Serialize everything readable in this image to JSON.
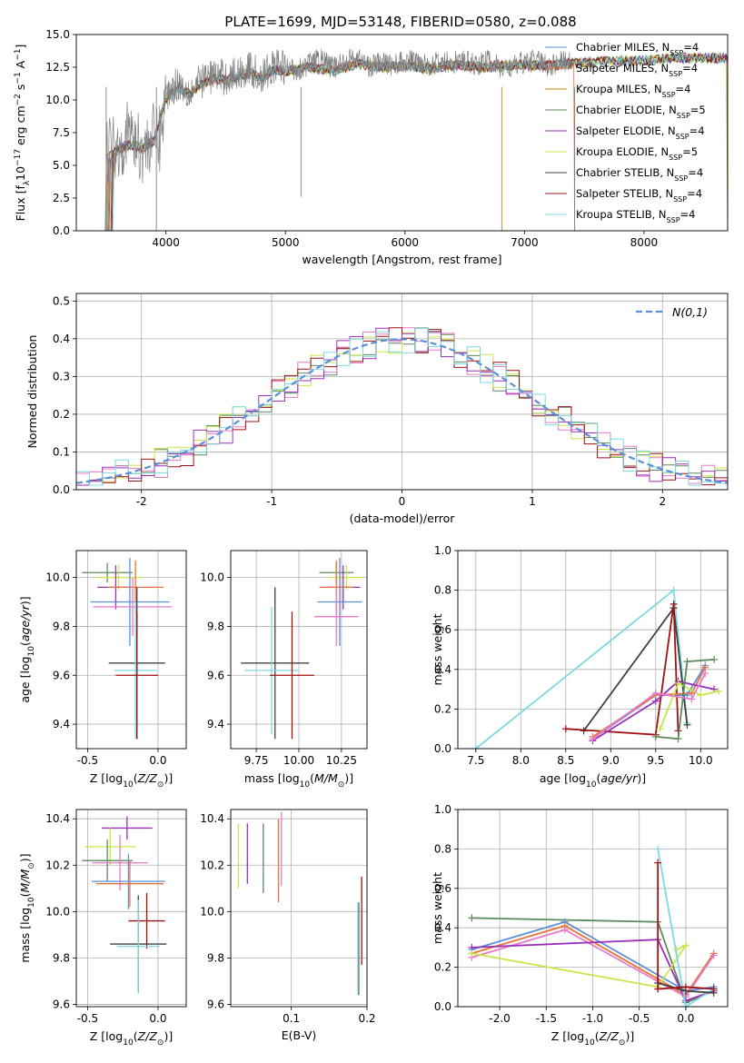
{
  "figure": {
    "title": "PLATE=1699, MJD=53148, FIBERID=0580, z=0.088"
  },
  "chart_data": [
    {
      "id": "spectrum",
      "type": "line",
      "xlabel": "wavelength [Angstrom, rest frame]",
      "ylabel": "Flux [f_λ 10^{-17} erg cm^{-2} s^{-1} Å^{-1}]",
      "xlim": [
        3250,
        8700
      ],
      "ylim": [
        0,
        15
      ],
      "xticks": [
        4000,
        5000,
        6000,
        7000,
        8000
      ],
      "yticks": [
        0.0,
        2.5,
        5.0,
        7.5,
        10.0,
        12.5,
        15.0
      ],
      "grid": false,
      "legend_position": "right",
      "data_color": "#808080",
      "data_x": [
        3500,
        3550,
        3600,
        3650,
        3700,
        3750,
        3800,
        3850,
        3900,
        3950,
        4000,
        4100,
        4200,
        4300,
        4400,
        4500,
        4600,
        4700,
        4800,
        4900,
        5000,
        5100,
        5200,
        5300,
        5400,
        5500,
        5600,
        5700,
        5800,
        5900,
        6000,
        6100,
        6200,
        6300,
        6400,
        6500,
        6600,
        6700,
        6800,
        6900,
        7000,
        7100,
        7200,
        7300,
        7400
      ],
      "data_y": [
        5.9,
        6.8,
        6.3,
        7.0,
        7.6,
        6.7,
        6.2,
        6.6,
        7.3,
        7.0,
        10.4,
        11.3,
        10.6,
        11.5,
        11.9,
        11.7,
        12.0,
        12.4,
        11.7,
        12.6,
        12.5,
        12.3,
        12.8,
        13.1,
        12.4,
        13.0,
        13.2,
        12.6,
        12.8,
        12.7,
        12.9,
        13.0,
        12.7,
        12.8,
        12.9,
        12.9,
        12.7,
        13.0,
        12.4,
        12.5,
        12.9,
        13.0,
        12.6,
        12.9,
        13.0
      ],
      "model_x": [
        3500,
        3600,
        3700,
        3800,
        3900,
        4000,
        4100,
        4200,
        4300,
        4400,
        4500,
        4600,
        4700,
        4800,
        4900,
        5000,
        5200,
        5400,
        5600,
        5800,
        6000,
        6200,
        6400,
        6600,
        6800,
        7000,
        7200,
        7400,
        7600,
        7800,
        8000,
        8200,
        8400
      ],
      "model_y": [
        5.5,
        6.2,
        6.6,
        6.3,
        6.9,
        10.1,
        11.0,
        10.4,
        11.3,
        11.6,
        11.5,
        11.7,
        12.1,
        11.6,
        12.3,
        12.2,
        12.5,
        12.2,
        12.8,
        12.5,
        12.6,
        12.4,
        12.7,
        12.5,
        12.6,
        12.7,
        12.6,
        12.8,
        12.9,
        13.0,
        13.0,
        13.2,
        13.2
      ],
      "series": [
        {
          "name": "Chabrier MILES, N_SSP=4",
          "color": "#5b8fd9"
        },
        {
          "name": "Salpeter MILES, N_SSP=4",
          "color": "#e8743b"
        },
        {
          "name": "Kroupa MILES, N_SSP=4",
          "color": "#b8860b"
        },
        {
          "name": "Chabrier ELODIE, N_SSP=5",
          "color": "#5c8a5c"
        },
        {
          "name": "Salpeter ELODIE, N_SSP=4",
          "color": "#9b30b8"
        },
        {
          "name": "Kroupa ELODIE, N_SSP=5",
          "color": "#c8e64a"
        },
        {
          "name": "Chabrier STELIB, N_SSP=4",
          "color": "#404040"
        },
        {
          "name": "Salpeter STELIB, N_SSP=4",
          "color": "#a01010"
        },
        {
          "name": "Kroupa STELIB, N_SSP=4",
          "color": "#7dd8e0"
        }
      ]
    },
    {
      "id": "residuals",
      "type": "line",
      "xlabel": "(data-model)/error",
      "ylabel": "Normed distribution",
      "xlim": [
        -2.5,
        2.5
      ],
      "ylim": [
        0,
        0.52
      ],
      "xticks": [
        -2,
        -1,
        0,
        1,
        2
      ],
      "yticks": [
        0.0,
        0.1,
        0.2,
        0.3,
        0.4,
        0.5
      ],
      "grid": true,
      "legend_position": "top-right",
      "gaussian_label": "N(0,1)",
      "gaussian_color": "#5b8fd9",
      "bin_edges_start": -2.5,
      "bin_width": 0.1,
      "hist_colors": [
        "#5c8a5c",
        "#e87ac8",
        "#c8e64a",
        "#a01010",
        "#9b30b8",
        "#7dd8e0"
      ]
    },
    {
      "id": "age_vs_Z",
      "type": "scatter",
      "xlabel": "Z [log10(Z/Z☉)]",
      "ylabel": "age [log10(age/yr)]",
      "xlim": [
        -0.58,
        0.2
      ],
      "ylim": [
        9.3,
        10.11
      ],
      "xticks": [
        -0.5,
        0.0
      ],
      "yticks": [
        9.4,
        9.6,
        9.8,
        10.0
      ],
      "grid": true,
      "errorbars": [
        {
          "x": -0.36,
          "xerr": 0.18,
          "y": 10.02,
          "yerr": 0.04,
          "color": "#5c8a5c"
        },
        {
          "x": -0.28,
          "xerr": 0.16,
          "y": 10.0,
          "yerr": 0.05,
          "color": "#c8e64a"
        },
        {
          "x": -0.3,
          "xerr": 0.13,
          "y": 9.96,
          "yerr": 0.09,
          "color": "#9b30b8"
        },
        {
          "x": -0.16,
          "xerr": 0.2,
          "y": 9.96,
          "yerr": 0.11,
          "color": "#e8743b"
        },
        {
          "x": -0.2,
          "xerr": 0.28,
          "y": 9.9,
          "yerr": 0.18,
          "color": "#5b8fd9"
        },
        {
          "x": -0.18,
          "xerr": 0.28,
          "y": 9.88,
          "yerr": 0.12,
          "color": "#e87ac8"
        },
        {
          "x": -0.15,
          "xerr": 0.2,
          "y": 9.65,
          "yerr": 0.31,
          "color": "#404040"
        },
        {
          "x": -0.16,
          "xerr": 0.15,
          "y": 9.62,
          "yerr": 0.28,
          "color": "#7dd8e0"
        },
        {
          "x": -0.15,
          "xerr": 0.15,
          "y": 9.6,
          "yerr": 0.26,
          "color": "#a01010"
        }
      ]
    },
    {
      "id": "age_vs_mass",
      "type": "scatter",
      "xlabel": "mass [log10(M/M☉)]",
      "ylabel": "",
      "xlim": [
        9.6,
        10.4
      ],
      "ylim": [
        9.3,
        10.11
      ],
      "xticks": [
        9.75,
        10.0,
        10.25
      ],
      "xtick_labels": [
        "9.75",
        "10.00",
        "10.25"
      ],
      "yticks": [
        9.4,
        9.6,
        9.8,
        10.0
      ],
      "grid": true,
      "errorbars": [
        {
          "x": 10.22,
          "xerr": 0.1,
          "y": 10.02,
          "yerr": 0.04,
          "color": "#5c8a5c"
        },
        {
          "x": 10.28,
          "xerr": 0.1,
          "y": 10.0,
          "yerr": 0.05,
          "color": "#c8e64a"
        },
        {
          "x": 10.26,
          "xerr": 0.1,
          "y": 9.96,
          "yerr": 0.09,
          "color": "#9b30b8"
        },
        {
          "x": 10.22,
          "xerr": 0.1,
          "y": 9.96,
          "yerr": 0.11,
          "color": "#e8743b"
        },
        {
          "x": 10.24,
          "xerr": 0.13,
          "y": 9.9,
          "yerr": 0.18,
          "color": "#5b8fd9"
        },
        {
          "x": 10.22,
          "xerr": 0.13,
          "y": 9.84,
          "yerr": 0.12,
          "color": "#e87ac8"
        },
        {
          "x": 9.86,
          "xerr": 0.2,
          "y": 9.65,
          "yerr": 0.31,
          "color": "#404040"
        },
        {
          "x": 9.84,
          "xerr": 0.16,
          "y": 9.62,
          "yerr": 0.26,
          "color": "#7dd8e0"
        },
        {
          "x": 9.96,
          "xerr": 0.13,
          "y": 9.6,
          "yerr": 0.26,
          "color": "#a01010"
        }
      ]
    },
    {
      "id": "weight_vs_age",
      "type": "line",
      "xlabel": "age [log10(age/yr)]",
      "ylabel": "mass weight",
      "xlim": [
        7.3,
        10.3
      ],
      "ylim": [
        0,
        1.0
      ],
      "xticks": [
        7.5,
        8.0,
        8.5,
        9.0,
        9.5,
        10.0
      ],
      "yticks": [
        0.0,
        0.2,
        0.4,
        0.6,
        0.8,
        1.0
      ],
      "grid": true,
      "series": [
        {
          "color": "#7dd8e0",
          "points": [
            [
              7.5,
              0.0
            ],
            [
              9.7,
              0.8
            ],
            [
              9.85,
              0.13
            ]
          ]
        },
        {
          "color": "#404040",
          "points": [
            [
              8.7,
              0.09
            ],
            [
              9.7,
              0.71
            ],
            [
              9.85,
              0.12
            ]
          ]
        },
        {
          "color": "#a01010",
          "points": [
            [
              8.5,
              0.1
            ],
            [
              9.5,
              0.07
            ],
            [
              9.7,
              0.73
            ],
            [
              9.75,
              0.09
            ]
          ]
        },
        {
          "color": "#5b8fd9",
          "points": [
            [
              8.8,
              0.05
            ],
            [
              9.5,
              0.27
            ],
            [
              9.85,
              0.27
            ],
            [
              10.05,
              0.42
            ]
          ]
        },
        {
          "color": "#e8743b",
          "points": [
            [
              8.8,
              0.06
            ],
            [
              9.5,
              0.27
            ],
            [
              9.9,
              0.28
            ],
            [
              10.05,
              0.41
            ]
          ]
        },
        {
          "color": "#9b30b8",
          "points": [
            [
              8.8,
              0.04
            ],
            [
              9.5,
              0.24
            ],
            [
              9.75,
              0.34
            ],
            [
              10.15,
              0.3
            ]
          ]
        },
        {
          "color": "#c8e64a",
          "points": [
            [
              9.55,
              0.1
            ],
            [
              9.75,
              0.33
            ],
            [
              10.0,
              0.27
            ],
            [
              10.2,
              0.29
            ]
          ]
        },
        {
          "color": "#5c8a5c",
          "points": [
            [
              9.5,
              0.06
            ],
            [
              9.75,
              0.05
            ],
            [
              9.85,
              0.44
            ],
            [
              10.15,
              0.45
            ]
          ]
        },
        {
          "color": "#e87ac8",
          "points": [
            [
              8.8,
              0.05
            ],
            [
              9.5,
              0.28
            ],
            [
              9.9,
              0.25
            ],
            [
              10.05,
              0.38
            ]
          ]
        }
      ]
    },
    {
      "id": "mass_vs_Z",
      "type": "scatter",
      "xlabel": "Z [log10(Z/Z☉)]",
      "ylabel": "mass [log10(M/M☉)]",
      "xlim": [
        -0.58,
        0.2
      ],
      "ylim": [
        9.59,
        10.44
      ],
      "xticks": [
        -0.5,
        0.0
      ],
      "yticks": [
        9.6,
        9.8,
        10.0,
        10.2,
        10.4
      ],
      "grid": true,
      "errorbars": [
        {
          "x": -0.22,
          "xerr": 0.18,
          "y": 10.36,
          "yerr": 0.05,
          "color": "#9b30b8"
        },
        {
          "x": -0.34,
          "xerr": 0.18,
          "y": 10.28,
          "yerr": 0.08,
          "color": "#c8e64a"
        },
        {
          "x": -0.36,
          "xerr": 0.18,
          "y": 10.22,
          "yerr": 0.09,
          "color": "#5c8a5c"
        },
        {
          "x": -0.27,
          "xerr": 0.2,
          "y": 10.21,
          "yerr": 0.12,
          "color": "#e87ac8"
        },
        {
          "x": -0.21,
          "xerr": 0.26,
          "y": 10.13,
          "yerr": 0.12,
          "color": "#5b8fd9"
        },
        {
          "x": -0.2,
          "xerr": 0.24,
          "y": 10.12,
          "yerr": 0.1,
          "color": "#e8743b"
        },
        {
          "x": -0.08,
          "xerr": 0.13,
          "y": 9.96,
          "yerr": 0.12,
          "color": "#a01010"
        },
        {
          "x": -0.14,
          "xerr": 0.2,
          "y": 9.86,
          "yerr": 0.21,
          "color": "#404040"
        },
        {
          "x": -0.14,
          "xerr": 0.15,
          "y": 9.85,
          "yerr": 0.2,
          "color": "#7dd8e0"
        }
      ]
    },
    {
      "id": "mass_vs_EBV",
      "type": "scatter",
      "xlabel": "E(B-V)",
      "ylabel": "",
      "xlim": [
        0.02,
        0.2
      ],
      "ylim": [
        9.59,
        10.44
      ],
      "xticks": [
        0.1,
        0.2
      ],
      "yticks": [
        9.6,
        9.8,
        10.0,
        10.2,
        10.4
      ],
      "grid": true,
      "errorbars": [
        {
          "x": 0.03,
          "y": 10.24,
          "yerr": 0.14,
          "color": "#c8e64a"
        },
        {
          "x": 0.042,
          "y": 10.25,
          "yerr": 0.13,
          "color": "#9b30b8"
        },
        {
          "x": 0.063,
          "y": 10.23,
          "yerr": 0.15,
          "color": "#5c8a5c"
        },
        {
          "x": 0.083,
          "y": 10.22,
          "yerr": 0.18,
          "color": "#e8743b"
        },
        {
          "x": 0.087,
          "y": 10.27,
          "yerr": 0.16,
          "color": "#e87ac8"
        },
        {
          "x": 0.189,
          "y": 9.84,
          "yerr": 0.2,
          "color": "#404040"
        },
        {
          "x": 0.193,
          "y": 9.96,
          "yerr": 0.19,
          "color": "#a01010"
        },
        {
          "x": 0.188,
          "y": 9.84,
          "yerr": 0.2,
          "color": "#7dd8e0"
        }
      ]
    },
    {
      "id": "weight_vs_Z",
      "type": "line",
      "xlabel": "Z [log10(Z/Z☉)]",
      "ylabel": "mass weight",
      "xlim": [
        -2.45,
        0.45
      ],
      "ylim": [
        0,
        1.0
      ],
      "xticks": [
        -2.0,
        -1.5,
        -1.0,
        -0.5,
        0.0
      ],
      "yticks": [
        0.0,
        0.2,
        0.4,
        0.6,
        0.8,
        1.0
      ],
      "grid": true,
      "series": [
        {
          "color": "#5c8a5c",
          "points": [
            [
              -2.3,
              0.45
            ],
            [
              -0.3,
              0.43
            ],
            [
              0.0,
              0.02
            ],
            [
              0.3,
              0.08
            ]
          ]
        },
        {
          "color": "#5b8fd9",
          "points": [
            [
              -2.3,
              0.29
            ],
            [
              -1.3,
              0.43
            ],
            [
              0.0,
              0.08
            ],
            [
              0.3,
              0.1
            ]
          ]
        },
        {
          "color": "#e8743b",
          "points": [
            [
              -2.3,
              0.27
            ],
            [
              -1.3,
              0.41
            ],
            [
              0.0,
              0.06
            ],
            [
              0.3,
              0.27
            ]
          ]
        },
        {
          "color": "#e87ac8",
          "points": [
            [
              -2.3,
              0.25
            ],
            [
              -1.3,
              0.39
            ],
            [
              0.0,
              0.05
            ],
            [
              0.3,
              0.26
            ]
          ]
        },
        {
          "color": "#9b30b8",
          "points": [
            [
              -2.3,
              0.3
            ],
            [
              -0.3,
              0.34
            ],
            [
              0.0,
              0.03
            ],
            [
              0.3,
              0.08
            ]
          ]
        },
        {
          "color": "#c8e64a",
          "points": [
            [
              -2.3,
              0.27
            ],
            [
              -0.3,
              0.1
            ],
            [
              0.0,
              0.31
            ],
            [
              -0.1,
              0.29
            ]
          ]
        },
        {
          "color": "#7dd8e0",
          "points": [
            [
              -0.3,
              0.8
            ],
            [
              0.0,
              0.0
            ],
            [
              0.3,
              0.09
            ]
          ]
        },
        {
          "color": "#404040",
          "points": [
            [
              -0.3,
              0.12
            ],
            [
              0.0,
              0.08
            ],
            [
              0.3,
              0.07
            ]
          ]
        },
        {
          "color": "#a01010",
          "points": [
            [
              -0.3,
              0.73
            ],
            [
              -0.3,
              0.09
            ],
            [
              0.0,
              0.1
            ],
            [
              0.3,
              0.09
            ]
          ]
        }
      ]
    }
  ]
}
